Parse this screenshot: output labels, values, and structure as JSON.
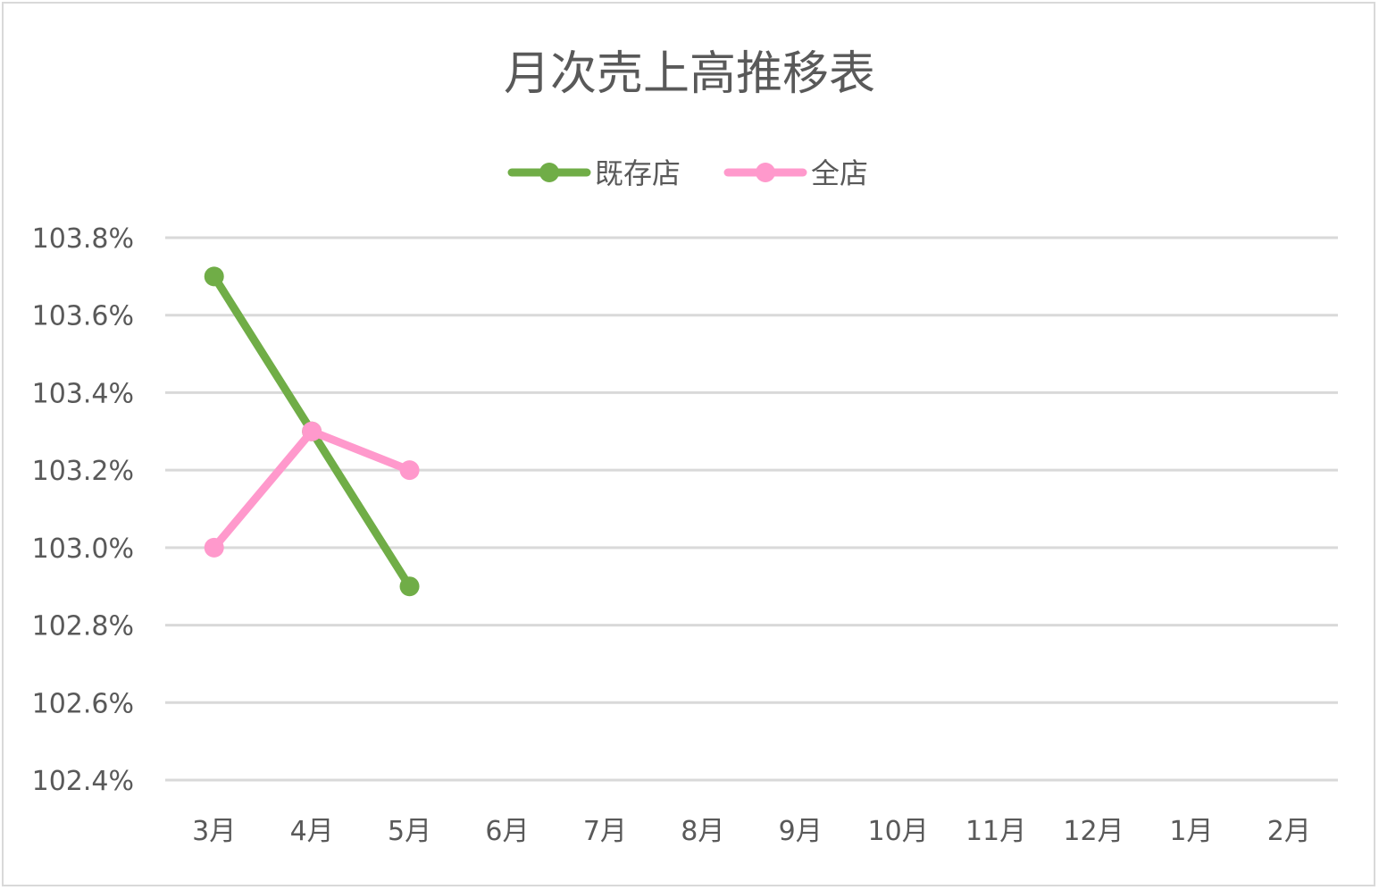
{
  "chart_data": {
    "type": "line",
    "title": "月次売上高推移表",
    "categories": [
      "3月",
      "4月",
      "5月",
      "6月",
      "7月",
      "8月",
      "9月",
      "10月",
      "11月",
      "12月",
      "1月",
      "2月"
    ],
    "series": [
      {
        "name": "既存店",
        "color": "#70ad47",
        "values": [
          103.7,
          103.3,
          102.9,
          null,
          null,
          null,
          null,
          null,
          null,
          null,
          null,
          null
        ]
      },
      {
        "name": "全店",
        "color": "#ff99cc",
        "values": [
          103.0,
          103.3,
          103.2,
          null,
          null,
          null,
          null,
          null,
          null,
          null,
          null,
          null
        ]
      }
    ],
    "y_ticks": [
      "102.4%",
      "102.6%",
      "102.8%",
      "103.0%",
      "103.2%",
      "103.4%",
      "103.6%",
      "103.8%"
    ],
    "ylim": [
      102.4,
      103.8
    ],
    "y_unit": "%",
    "grid": "horizontal",
    "legend_position": "top"
  }
}
